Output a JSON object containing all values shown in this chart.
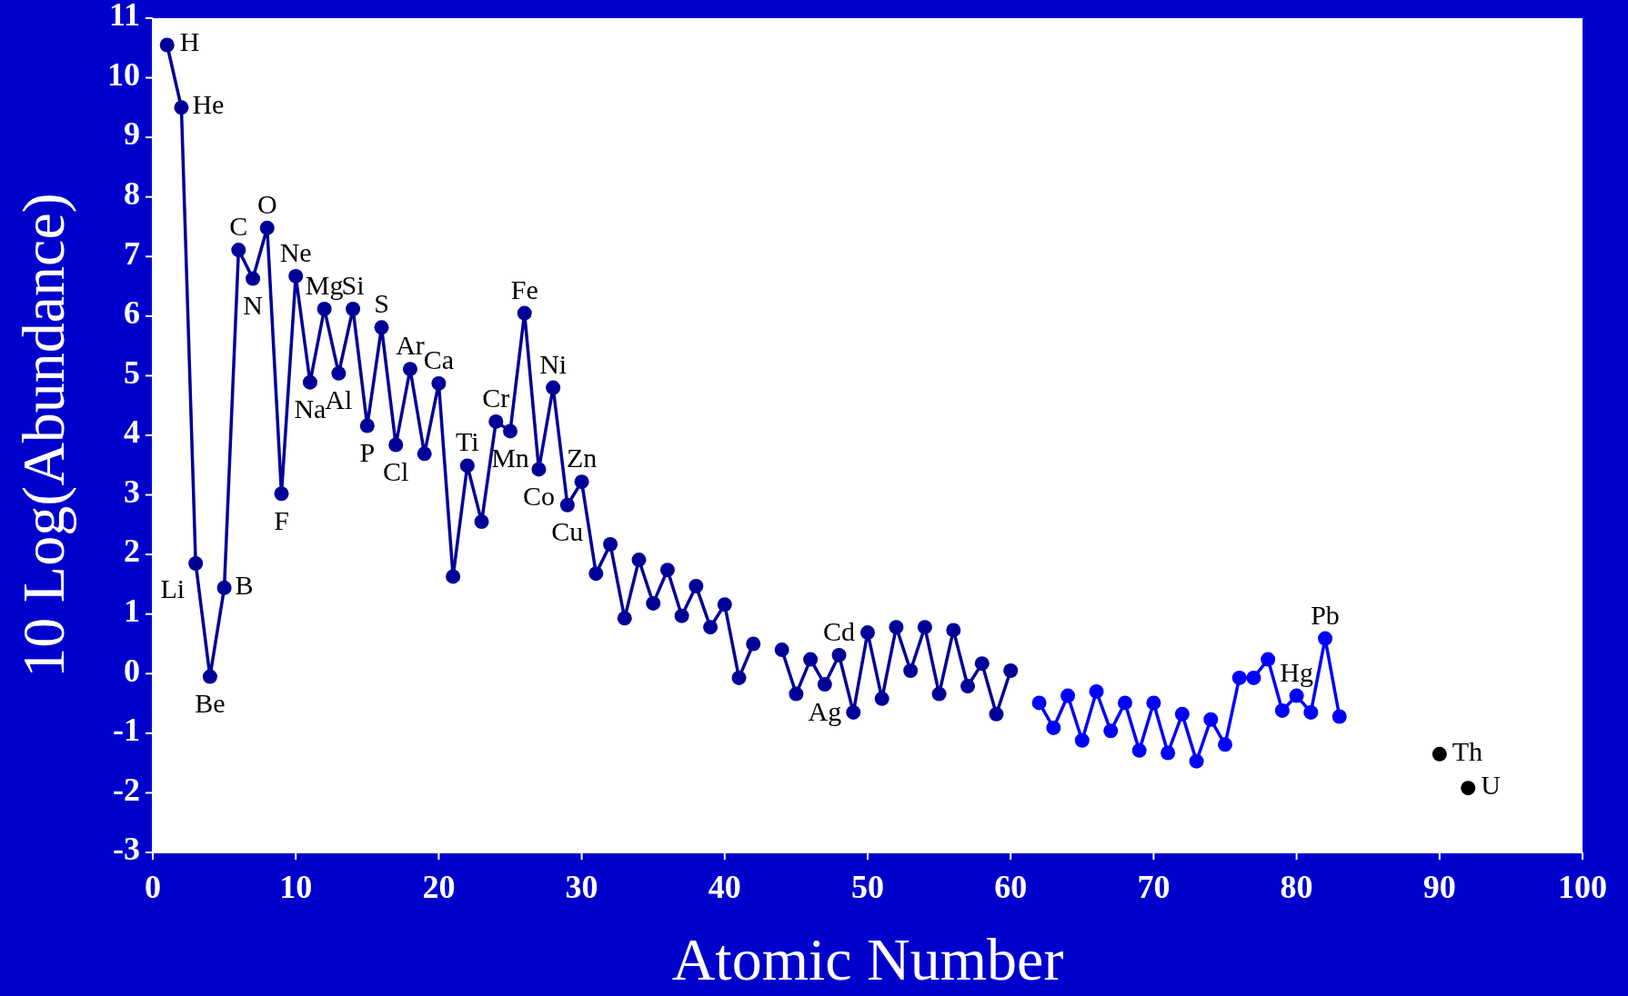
{
  "chart_data": {
    "type": "line",
    "xlabel": "Atomic Number",
    "ylabel": "10 Log(Abundance)",
    "xlim": [
      0,
      100
    ],
    "xticks": [
      0,
      10,
      20,
      30,
      40,
      50,
      60,
      70,
      80,
      90,
      100
    ],
    "ylim": [
      -3,
      11
    ],
    "yticks": [
      -3,
      -2,
      -1,
      0,
      1,
      2,
      3,
      4,
      5,
      6,
      7,
      8,
      9,
      10,
      11
    ],
    "grid": false,
    "marker": "circle",
    "line_style": "solid",
    "series": [
      {
        "color": "#000099",
        "x": [
          1,
          2,
          3,
          4,
          5,
          6,
          7,
          8,
          9,
          10,
          11,
          12,
          13,
          14,
          15,
          16,
          17,
          18,
          19,
          20,
          21,
          22,
          23,
          24,
          25,
          26,
          27,
          28,
          29,
          30,
          31,
          32,
          33,
          34,
          35,
          36,
          37,
          38,
          39,
          40,
          41,
          42,
          43,
          44,
          45,
          46,
          47,
          48,
          49,
          50,
          51,
          52,
          53,
          54,
          55,
          56,
          57,
          58,
          59,
          60
        ],
        "values": [
          10.55,
          9.5,
          1.85,
          -0.05,
          1.44,
          7.11,
          6.63,
          7.48,
          3.02,
          6.67,
          4.89,
          6.12,
          5.04,
          6.12,
          4.16,
          5.81,
          3.84,
          5.11,
          3.69,
          4.87,
          1.63,
          3.49,
          2.55,
          4.23,
          4.07,
          6.05,
          3.43,
          4.8,
          2.83,
          3.22,
          1.68,
          2.17,
          0.93,
          1.91,
          1.18,
          1.74,
          0.97,
          1.47,
          0.78,
          1.16,
          -0.07,
          0.5,
          null,
          0.4,
          -0.34,
          0.24,
          -0.18,
          0.31,
          -0.65,
          0.69,
          -0.42,
          0.78,
          0.05,
          0.78,
          -0.34,
          0.73,
          -0.21,
          0.17,
          -0.68,
          0.05
        ]
      },
      {
        "color": "#0000ff",
        "x": [
          62,
          63,
          64,
          65,
          66,
          67,
          68,
          69,
          70,
          71,
          72,
          73,
          74,
          75,
          76,
          77,
          78,
          79,
          80,
          81,
          82,
          83
        ],
        "values": [
          -0.49,
          -0.91,
          -0.37,
          -1.12,
          -0.3,
          -0.96,
          -0.49,
          -1.29,
          -0.49,
          -1.33,
          -0.68,
          -1.47,
          -0.77,
          -1.19,
          -0.07,
          -0.07,
          0.24,
          -0.62,
          -0.37,
          -0.65,
          0.59,
          -0.72
        ]
      },
      {
        "type": "scatter",
        "color": "#000000",
        "x": [
          90,
          92
        ],
        "values": [
          -1.35,
          -1.92
        ]
      }
    ],
    "annotations": [
      {
        "text": "H",
        "x": 1,
        "y": 10.55
      },
      {
        "text": "He",
        "x": 2,
        "y": 9.5
      },
      {
        "text": "Li",
        "x": 3,
        "y": 1.85
      },
      {
        "text": "Be",
        "x": 4,
        "y": -0.05
      },
      {
        "text": "B",
        "x": 5,
        "y": 1.44
      },
      {
        "text": "C",
        "x": 6,
        "y": 7.11
      },
      {
        "text": "N",
        "x": 7,
        "y": 6.63
      },
      {
        "text": "O",
        "x": 8,
        "y": 7.48
      },
      {
        "text": "F",
        "x": 9,
        "y": 3.02
      },
      {
        "text": "Ne",
        "x": 10,
        "y": 6.67
      },
      {
        "text": "Na",
        "x": 11,
        "y": 4.89
      },
      {
        "text": "Mg",
        "x": 12,
        "y": 6.12
      },
      {
        "text": "Al",
        "x": 13,
        "y": 5.04
      },
      {
        "text": "Si",
        "x": 14,
        "y": 6.12
      },
      {
        "text": "P",
        "x": 15,
        "y": 4.16
      },
      {
        "text": "S",
        "x": 16,
        "y": 5.81
      },
      {
        "text": "Cl",
        "x": 17,
        "y": 3.84
      },
      {
        "text": "Ar",
        "x": 18,
        "y": 5.11
      },
      {
        "text": "Ca",
        "x": 20,
        "y": 4.87
      },
      {
        "text": "Ti",
        "x": 22,
        "y": 3.49
      },
      {
        "text": "Cr",
        "x": 24,
        "y": 4.23
      },
      {
        "text": "Mn",
        "x": 25,
        "y": 4.07
      },
      {
        "text": "Fe",
        "x": 26,
        "y": 6.05
      },
      {
        "text": "Co",
        "x": 27,
        "y": 3.43
      },
      {
        "text": "Ni",
        "x": 28,
        "y": 4.8
      },
      {
        "text": "Cu",
        "x": 29,
        "y": 2.83
      },
      {
        "text": "Zn",
        "x": 30,
        "y": 3.22
      },
      {
        "text": "Ag",
        "x": 47,
        "y": -0.18
      },
      {
        "text": "Cd",
        "x": 48,
        "y": 0.31
      },
      {
        "text": "Hg",
        "x": 80,
        "y": -0.37
      },
      {
        "text": "Pb",
        "x": 82,
        "y": 0.59
      },
      {
        "text": "Th",
        "x": 90,
        "y": -1.35
      },
      {
        "text": "U",
        "x": 92,
        "y": -1.92
      }
    ]
  }
}
